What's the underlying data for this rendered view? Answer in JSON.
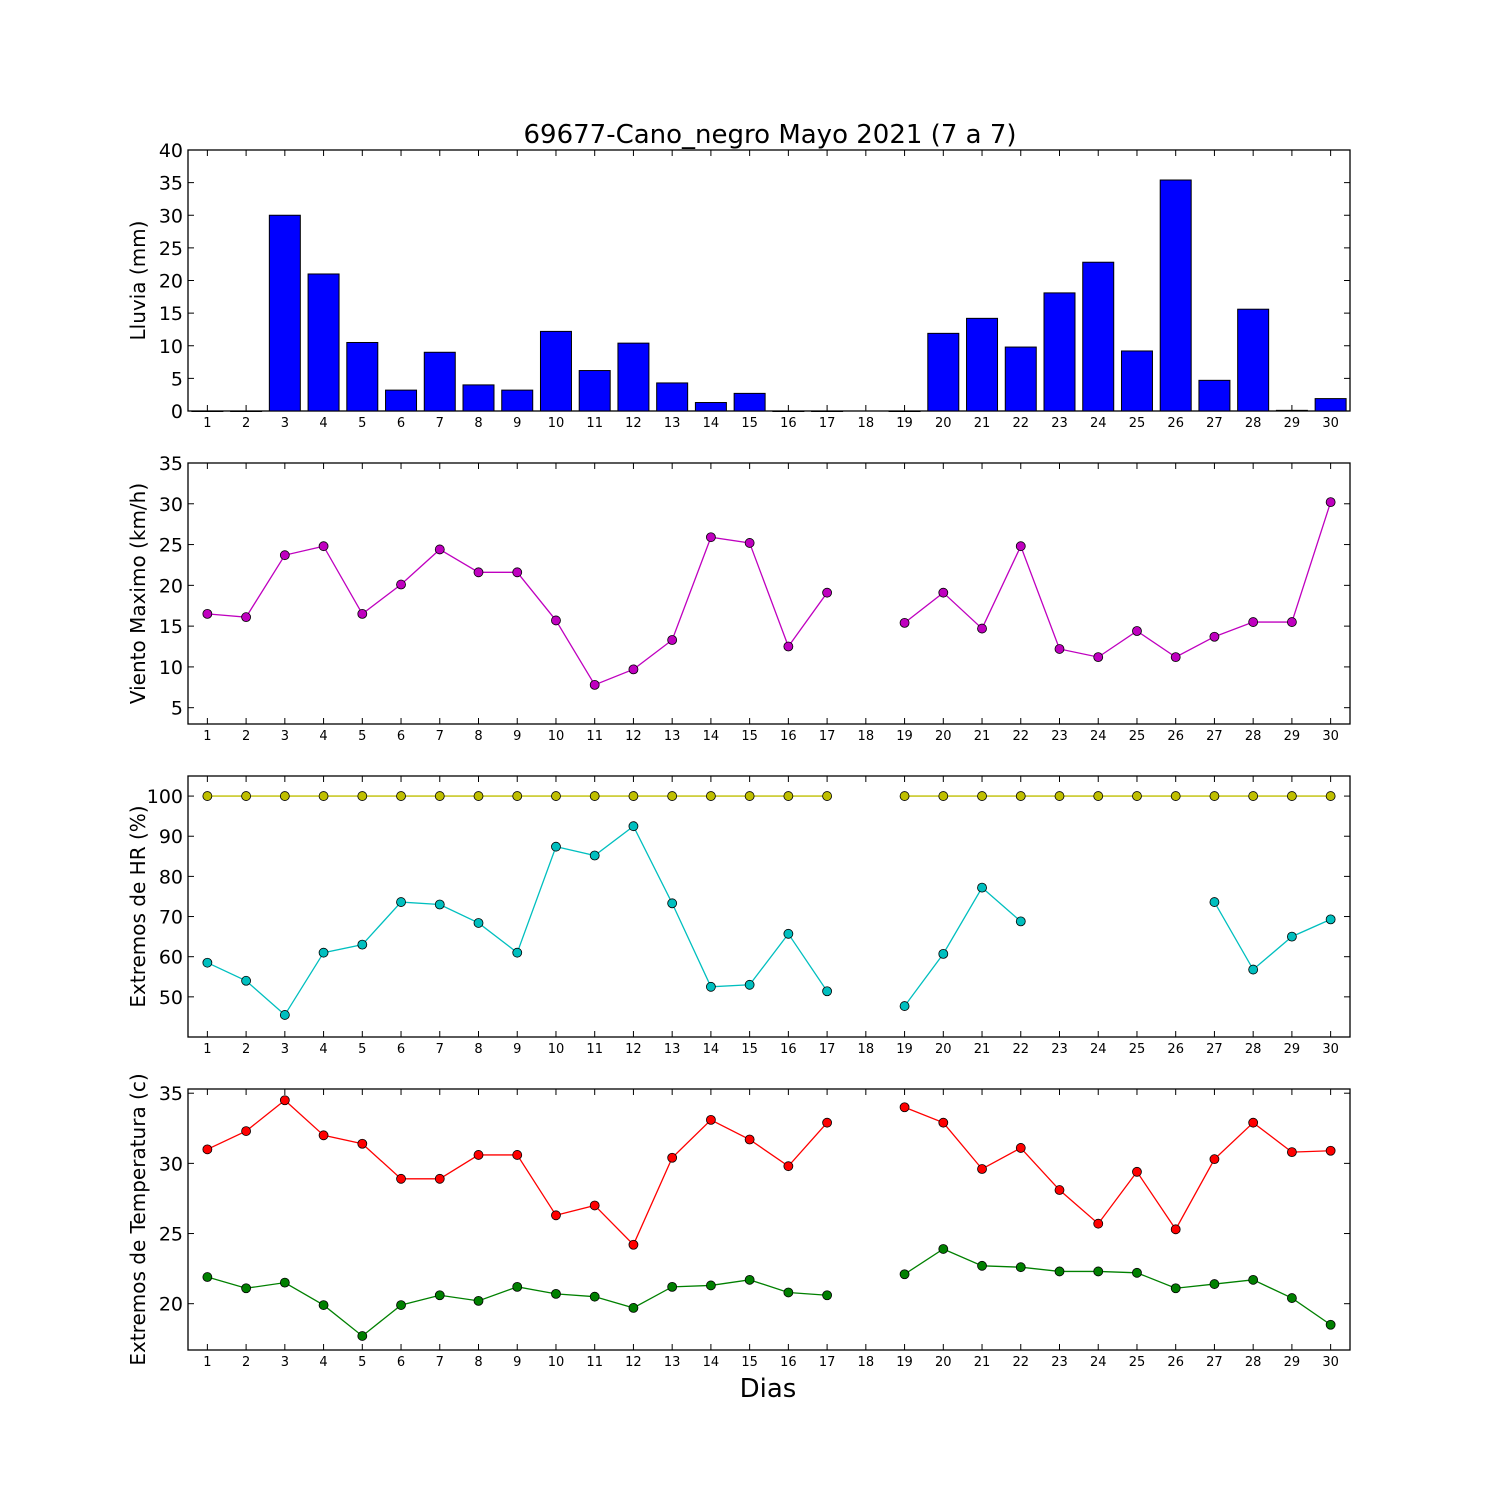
{
  "title": "69677-Cano_negro Mayo 2021  (7 a 7)",
  "xlabel": "Dias",
  "chart_data": [
    {
      "type": "bar",
      "ylabel": "Lluvia (mm)",
      "ylim": [
        0,
        40
      ],
      "yticks": [
        0,
        5,
        10,
        15,
        20,
        25,
        30,
        35,
        40
      ],
      "x": [
        1,
        2,
        3,
        4,
        5,
        6,
        7,
        8,
        9,
        10,
        11,
        12,
        13,
        14,
        15,
        16,
        17,
        18,
        19,
        20,
        21,
        22,
        23,
        24,
        25,
        26,
        27,
        28,
        29,
        30
      ],
      "series": [
        {
          "color": "#0000ff",
          "values": [
            0,
            0,
            30,
            21,
            10.5,
            3.2,
            9,
            4,
            3.2,
            12.2,
            6.2,
            10.4,
            4.3,
            1.3,
            2.7,
            0,
            0,
            null,
            0,
            11.9,
            14.2,
            9.8,
            18.1,
            22.8,
            9.2,
            35.4,
            4.7,
            15.6,
            0.1,
            1.9
          ]
        }
      ]
    },
    {
      "type": "line",
      "ylabel": "Viento Maximo (km/h)",
      "ylim": [
        3,
        35
      ],
      "yticks": [
        5,
        10,
        15,
        20,
        25,
        30,
        35
      ],
      "x": [
        1,
        2,
        3,
        4,
        5,
        6,
        7,
        8,
        9,
        10,
        11,
        12,
        13,
        14,
        15,
        16,
        17,
        18,
        19,
        20,
        21,
        22,
        23,
        24,
        25,
        26,
        27,
        28,
        29,
        30
      ],
      "series": [
        {
          "color": "#bf00bf",
          "values": [
            16.5,
            16.1,
            23.7,
            24.8,
            16.5,
            20.1,
            24.4,
            21.6,
            21.6,
            15.7,
            7.8,
            9.7,
            13.3,
            25.9,
            25.2,
            12.5,
            19.1,
            null,
            15.4,
            19.1,
            14.7,
            24.8,
            12.2,
            11.2,
            14.4,
            11.2,
            13.7,
            15.5,
            15.5,
            30.2
          ]
        }
      ]
    },
    {
      "type": "line",
      "ylabel": "Extremos de HR (%)",
      "ylim": [
        40,
        105
      ],
      "yticks": [
        50,
        60,
        70,
        80,
        90,
        100
      ],
      "x": [
        1,
        2,
        3,
        4,
        5,
        6,
        7,
        8,
        9,
        10,
        11,
        12,
        13,
        14,
        15,
        16,
        17,
        18,
        19,
        20,
        21,
        22,
        23,
        24,
        25,
        26,
        27,
        28,
        29,
        30
      ],
      "series": [
        {
          "color": "#bfbf00",
          "values": [
            100,
            100,
            100,
            100,
            100,
            100,
            100,
            100,
            100,
            100,
            100,
            100,
            100,
            100,
            100,
            100,
            100,
            null,
            100,
            100,
            100,
            100,
            100,
            100,
            100,
            100,
            100,
            100,
            100,
            100
          ]
        },
        {
          "color": "#00bfbf",
          "values": [
            58.5,
            54,
            45.5,
            61,
            63,
            73.6,
            73,
            68.4,
            61,
            87.4,
            85.2,
            92.5,
            73.3,
            52.5,
            53,
            65.7,
            51.4,
            null,
            47.7,
            60.7,
            77.2,
            68.8,
            null,
            null,
            null,
            null,
            73.6,
            56.8,
            65,
            69.3
          ]
        }
      ]
    },
    {
      "type": "line",
      "ylabel": "Extremos de Temperatura (c)",
      "ylim": [
        16.7,
        35.3
      ],
      "yticks": [
        20,
        25,
        30,
        35
      ],
      "x": [
        1,
        2,
        3,
        4,
        5,
        6,
        7,
        8,
        9,
        10,
        11,
        12,
        13,
        14,
        15,
        16,
        17,
        18,
        19,
        20,
        21,
        22,
        23,
        24,
        25,
        26,
        27,
        28,
        29,
        30
      ],
      "series": [
        {
          "color": "#ff0000",
          "values": [
            31,
            32.3,
            34.5,
            32,
            31.4,
            28.9,
            28.9,
            30.6,
            30.6,
            26.3,
            27,
            24.2,
            30.4,
            33.1,
            31.7,
            29.8,
            32.9,
            null,
            34,
            32.9,
            29.6,
            31.1,
            28.1,
            25.7,
            29.4,
            25.3,
            30.3,
            32.9,
            30.8,
            30.9
          ]
        },
        {
          "color": "#008000",
          "values": [
            21.9,
            21.1,
            21.5,
            19.9,
            17.7,
            19.9,
            20.6,
            20.2,
            21.2,
            20.7,
            20.5,
            19.7,
            21.2,
            21.3,
            21.7,
            20.8,
            20.6,
            null,
            22.1,
            23.9,
            22.7,
            22.6,
            22.3,
            22.3,
            22.2,
            21.1,
            21.4,
            21.7,
            20.4,
            18.5
          ]
        }
      ]
    }
  ]
}
